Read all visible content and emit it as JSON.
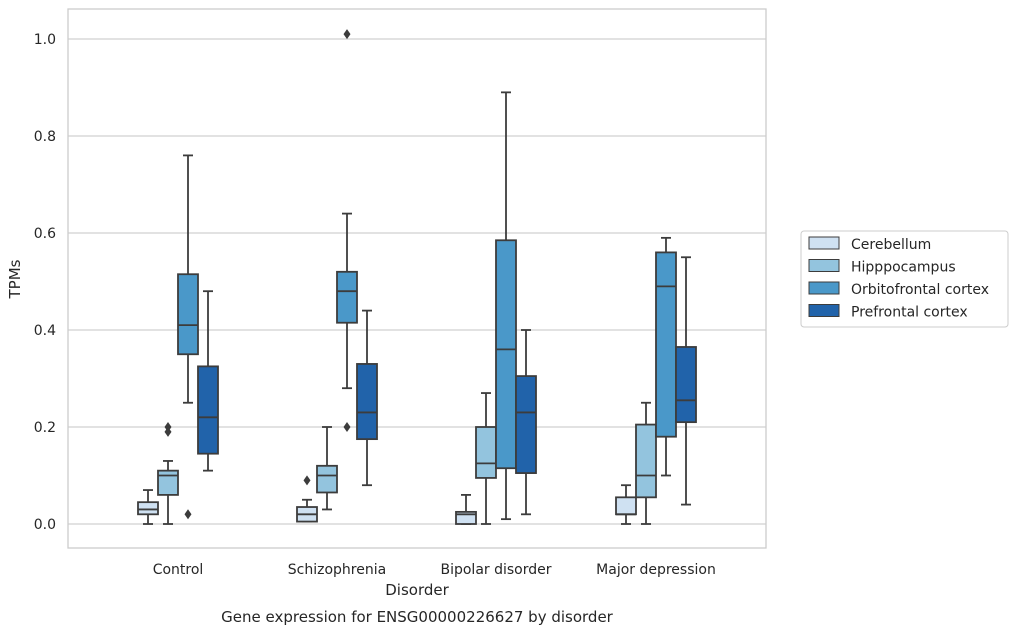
{
  "chart_data": {
    "type": "boxplot",
    "caption": "Gene expression for ENSG00000226627 by disorder",
    "xlabel": "Disorder",
    "ylabel": "TPMs",
    "ylim": [
      -0.05,
      1.06
    ],
    "yticks": [
      "0.0",
      "0.2",
      "0.4",
      "0.6",
      "0.8",
      "1.0"
    ],
    "ytick_values": [
      0.0,
      0.2,
      0.4,
      0.6,
      0.8,
      1.0
    ],
    "grid": true,
    "legend_position": "right",
    "categories": [
      "Control",
      "Schizophrenia",
      "Bipolar disorder",
      "Major depression"
    ],
    "series": [
      {
        "name": "Cerebellum",
        "color": "#cfe1f2",
        "boxes": [
          {
            "whisker_low": 0.0,
            "q1": 0.02,
            "median": 0.03,
            "q3": 0.045,
            "whisker_high": 0.07,
            "outliers": []
          },
          {
            "whisker_low": 0.005,
            "q1": 0.005,
            "median": 0.02,
            "q3": 0.035,
            "whisker_high": 0.05,
            "outliers": [
              0.09
            ]
          },
          {
            "whisker_low": 0.0,
            "q1": 0.0,
            "median": 0.02,
            "q3": 0.025,
            "whisker_high": 0.06,
            "outliers": []
          },
          {
            "whisker_low": 0.0,
            "q1": 0.02,
            "median": 0.02,
            "q3": 0.055,
            "whisker_high": 0.08,
            "outliers": []
          }
        ]
      },
      {
        "name": "Hipppocampus",
        "color": "#93c4de",
        "boxes": [
          {
            "whisker_low": 0.0,
            "q1": 0.06,
            "median": 0.1,
            "q3": 0.11,
            "whisker_high": 0.13,
            "outliers": [
              0.2,
              0.19
            ]
          },
          {
            "whisker_low": 0.03,
            "q1": 0.065,
            "median": 0.1,
            "q3": 0.12,
            "whisker_high": 0.2,
            "outliers": []
          },
          {
            "whisker_low": 0.0,
            "q1": 0.095,
            "median": 0.125,
            "q3": 0.2,
            "whisker_high": 0.27,
            "outliers": []
          },
          {
            "whisker_low": 0.0,
            "q1": 0.055,
            "median": 0.1,
            "q3": 0.205,
            "whisker_high": 0.25,
            "outliers": []
          }
        ]
      },
      {
        "name": "Orbitofrontal cortex",
        "color": "#4a98c9",
        "boxes": [
          {
            "whisker_low": 0.25,
            "q1": 0.35,
            "median": 0.41,
            "q3": 0.515,
            "whisker_high": 0.76,
            "outliers": [
              0.02
            ]
          },
          {
            "whisker_low": 0.28,
            "q1": 0.415,
            "median": 0.48,
            "q3": 0.52,
            "whisker_high": 0.64,
            "outliers": [
              1.01,
              0.2
            ]
          },
          {
            "whisker_low": 0.01,
            "q1": 0.115,
            "median": 0.36,
            "q3": 0.585,
            "whisker_high": 0.89,
            "outliers": []
          },
          {
            "whisker_low": 0.1,
            "q1": 0.18,
            "median": 0.49,
            "q3": 0.56,
            "whisker_high": 0.59,
            "outliers": []
          }
        ]
      },
      {
        "name": "Prefrontal cortex",
        "color": "#2163aa",
        "boxes": [
          {
            "whisker_low": 0.11,
            "q1": 0.145,
            "median": 0.22,
            "q3": 0.325,
            "whisker_high": 0.48,
            "outliers": []
          },
          {
            "whisker_low": 0.08,
            "q1": 0.175,
            "median": 0.23,
            "q3": 0.33,
            "whisker_high": 0.44,
            "outliers": []
          },
          {
            "whisker_low": 0.02,
            "q1": 0.105,
            "median": 0.23,
            "q3": 0.305,
            "whisker_high": 0.4,
            "outliers": []
          },
          {
            "whisker_low": 0.04,
            "q1": 0.21,
            "median": 0.255,
            "q3": 0.365,
            "whisker_high": 0.55,
            "outliers": []
          }
        ]
      }
    ]
  }
}
